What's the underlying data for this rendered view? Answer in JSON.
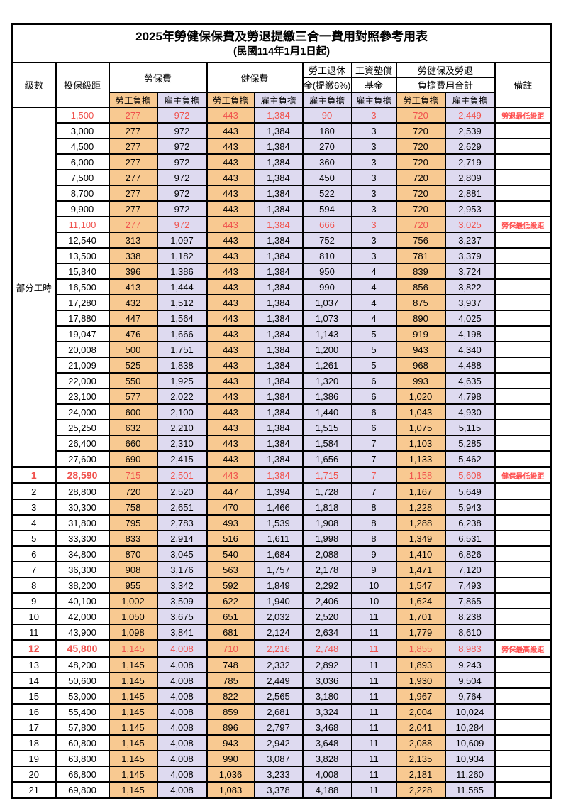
{
  "title": "2025年勞健保保費及勞退提繳三合一費用對照參考用表",
  "subtitle": "(民國114年1月1日起)",
  "colors": {
    "employee_column_bg": "#F8C991",
    "employer_column_bg": "#DEDAF0",
    "highlight_value_red": "#F0524D",
    "remark_red": "#FF5050",
    "border": "#000000",
    "background": "#FFFFFF"
  },
  "header": {
    "level": "級數",
    "bracket": "投保級距",
    "labor_insurance": "勞保費",
    "health_insurance": "健保費",
    "pension_line1": "勞工退休",
    "pension_line2": "金(提繳6%)",
    "wage_fund_line1": "工資墊償",
    "wage_fund_line2": "基金",
    "total_line1": "勞健保及勞退",
    "total_line2": "負擔費用合計",
    "remark": "備註",
    "employee_share": "勞工負擔",
    "employer_share": "雇主負擔"
  },
  "part_time_label": "部分工時",
  "column_keys": [
    "level",
    "insured_bracket",
    "labor_employee",
    "labor_employer",
    "health_employee",
    "health_employer",
    "pension_employer",
    "wage_fund_employer",
    "total_employee",
    "total_employer",
    "remark"
  ],
  "rows": [
    [
      "",
      "1,500",
      "277",
      "972",
      "443",
      "1,384",
      "90",
      "3",
      "720",
      "2,449",
      "勞退最低級距"
    ],
    [
      "",
      "3,000",
      "277",
      "972",
      "443",
      "1,384",
      "180",
      "3",
      "720",
      "2,539",
      ""
    ],
    [
      "",
      "4,500",
      "277",
      "972",
      "443",
      "1,384",
      "270",
      "3",
      "720",
      "2,629",
      ""
    ],
    [
      "",
      "6,000",
      "277",
      "972",
      "443",
      "1,384",
      "360",
      "3",
      "720",
      "2,719",
      ""
    ],
    [
      "",
      "7,500",
      "277",
      "972",
      "443",
      "1,384",
      "450",
      "3",
      "720",
      "2,809",
      ""
    ],
    [
      "",
      "8,700",
      "277",
      "972",
      "443",
      "1,384",
      "522",
      "3",
      "720",
      "2,881",
      ""
    ],
    [
      "",
      "9,900",
      "277",
      "972",
      "443",
      "1,384",
      "594",
      "3",
      "720",
      "2,953",
      ""
    ],
    [
      "",
      "11,100",
      "277",
      "972",
      "443",
      "1,384",
      "666",
      "3",
      "720",
      "3,025",
      "勞保最低級距"
    ],
    [
      "",
      "12,540",
      "313",
      "1,097",
      "443",
      "1,384",
      "752",
      "3",
      "756",
      "3,237",
      ""
    ],
    [
      "",
      "13,500",
      "338",
      "1,182",
      "443",
      "1,384",
      "810",
      "3",
      "781",
      "3,379",
      ""
    ],
    [
      "",
      "15,840",
      "396",
      "1,386",
      "443",
      "1,384",
      "950",
      "4",
      "839",
      "3,724",
      ""
    ],
    [
      "",
      "16,500",
      "413",
      "1,444",
      "443",
      "1,384",
      "990",
      "4",
      "856",
      "3,822",
      ""
    ],
    [
      "",
      "17,280",
      "432",
      "1,512",
      "443",
      "1,384",
      "1,037",
      "4",
      "875",
      "3,937",
      ""
    ],
    [
      "",
      "17,880",
      "447",
      "1,564",
      "443",
      "1,384",
      "1,073",
      "4",
      "890",
      "4,025",
      ""
    ],
    [
      "",
      "19,047",
      "476",
      "1,666",
      "443",
      "1,384",
      "1,143",
      "5",
      "919",
      "4,198",
      ""
    ],
    [
      "",
      "20,008",
      "500",
      "1,751",
      "443",
      "1,384",
      "1,200",
      "5",
      "943",
      "4,340",
      ""
    ],
    [
      "",
      "21,009",
      "525",
      "1,838",
      "443",
      "1,384",
      "1,261",
      "5",
      "968",
      "4,488",
      ""
    ],
    [
      "",
      "22,000",
      "550",
      "1,925",
      "443",
      "1,384",
      "1,320",
      "6",
      "993",
      "4,635",
      ""
    ],
    [
      "",
      "23,100",
      "577",
      "2,022",
      "443",
      "1,384",
      "1,386",
      "6",
      "1,020",
      "4,798",
      ""
    ],
    [
      "",
      "24,000",
      "600",
      "2,100",
      "443",
      "1,384",
      "1,440",
      "6",
      "1,043",
      "4,930",
      ""
    ],
    [
      "",
      "25,250",
      "632",
      "2,210",
      "443",
      "1,384",
      "1,515",
      "6",
      "1,075",
      "5,115",
      ""
    ],
    [
      "",
      "26,400",
      "660",
      "2,310",
      "443",
      "1,384",
      "1,584",
      "7",
      "1,103",
      "5,285",
      ""
    ],
    [
      "",
      "27,600",
      "690",
      "2,415",
      "443",
      "1,384",
      "1,656",
      "7",
      "1,133",
      "5,462",
      ""
    ],
    [
      "1",
      "28,590",
      "715",
      "2,501",
      "443",
      "1,384",
      "1,715",
      "7",
      "1,158",
      "5,608",
      "健保最低級距"
    ],
    [
      "2",
      "28,800",
      "720",
      "2,520",
      "447",
      "1,394",
      "1,728",
      "7",
      "1,167",
      "5,649",
      ""
    ],
    [
      "3",
      "30,300",
      "758",
      "2,651",
      "470",
      "1,466",
      "1,818",
      "8",
      "1,228",
      "5,943",
      ""
    ],
    [
      "4",
      "31,800",
      "795",
      "2,783",
      "493",
      "1,539",
      "1,908",
      "8",
      "1,288",
      "6,238",
      ""
    ],
    [
      "5",
      "33,300",
      "833",
      "2,914",
      "516",
      "1,611",
      "1,998",
      "8",
      "1,349",
      "6,531",
      ""
    ],
    [
      "6",
      "34,800",
      "870",
      "3,045",
      "540",
      "1,684",
      "2,088",
      "9",
      "1,410",
      "6,826",
      ""
    ],
    [
      "7",
      "36,300",
      "908",
      "3,176",
      "563",
      "1,757",
      "2,178",
      "9",
      "1,471",
      "7,120",
      ""
    ],
    [
      "8",
      "38,200",
      "955",
      "3,342",
      "592",
      "1,849",
      "2,292",
      "10",
      "1,547",
      "7,493",
      ""
    ],
    [
      "9",
      "40,100",
      "1,002",
      "3,509",
      "622",
      "1,940",
      "2,406",
      "10",
      "1,624",
      "7,865",
      ""
    ],
    [
      "10",
      "42,000",
      "1,050",
      "3,675",
      "651",
      "2,032",
      "2,520",
      "11",
      "1,701",
      "8,238",
      ""
    ],
    [
      "11",
      "43,900",
      "1,098",
      "3,841",
      "681",
      "2,124",
      "2,634",
      "11",
      "1,779",
      "8,610",
      ""
    ],
    [
      "12",
      "45,800",
      "1,145",
      "4,008",
      "710",
      "2,216",
      "2,748",
      "11",
      "1,855",
      "8,983",
      "勞保最高級距"
    ],
    [
      "13",
      "48,200",
      "1,145",
      "4,008",
      "748",
      "2,332",
      "2,892",
      "11",
      "1,893",
      "9,243",
      ""
    ],
    [
      "14",
      "50,600",
      "1,145",
      "4,008",
      "785",
      "2,449",
      "3,036",
      "11",
      "1,930",
      "9,504",
      ""
    ],
    [
      "15",
      "53,000",
      "1,145",
      "4,008",
      "822",
      "2,565",
      "3,180",
      "11",
      "1,967",
      "9,764",
      ""
    ],
    [
      "16",
      "55,400",
      "1,145",
      "4,008",
      "859",
      "2,681",
      "3,324",
      "11",
      "2,004",
      "10,024",
      ""
    ],
    [
      "17",
      "57,800",
      "1,145",
      "4,008",
      "896",
      "2,797",
      "3,468",
      "11",
      "2,041",
      "10,284",
      ""
    ],
    [
      "18",
      "60,800",
      "1,145",
      "4,008",
      "943",
      "2,942",
      "3,648",
      "11",
      "2,088",
      "10,609",
      ""
    ],
    [
      "19",
      "63,800",
      "1,145",
      "4,008",
      "990",
      "3,087",
      "3,828",
      "11",
      "2,135",
      "10,934",
      ""
    ],
    [
      "20",
      "66,800",
      "1,145",
      "4,008",
      "1,036",
      "3,233",
      "4,008",
      "11",
      "2,181",
      "11,260",
      ""
    ],
    [
      "21",
      "69,800",
      "1,145",
      "4,008",
      "1,083",
      "3,378",
      "4,188",
      "11",
      "2,228",
      "11,585",
      ""
    ]
  ],
  "row_flags": {
    "red_rows": [
      0,
      7,
      23,
      34
    ],
    "bold_bracket_rows": [
      23,
      34
    ],
    "thick_border_rows": [
      23,
      34
    ],
    "part_time_span_rows": 23
  }
}
